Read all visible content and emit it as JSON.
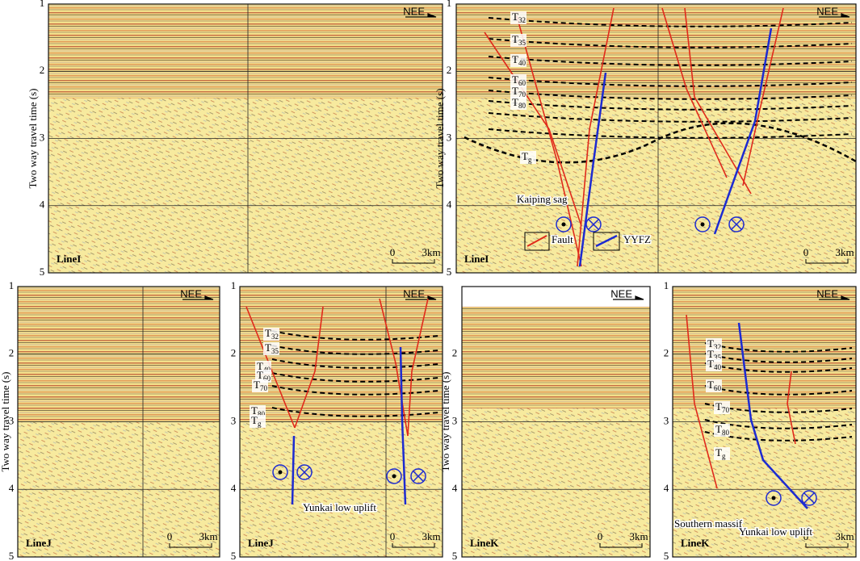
{
  "panels": [
    {
      "line": "LineI",
      "y_label": "Two way travel time (s)",
      "yticks": [
        1,
        2,
        3,
        4,
        5
      ],
      "direction": "NEE",
      "scale": [
        "0",
        "3km"
      ],
      "horizons": [],
      "annotations": []
    },
    {
      "line": "LineI",
      "y_label": "Two way travel time (s)",
      "yticks": [
        1,
        2,
        3,
        4,
        5
      ],
      "direction": "NEE",
      "scale": [
        "0",
        "3km"
      ],
      "horizons": [
        {
          "t": "T",
          "sub": "32"
        },
        {
          "t": "T",
          "sub": "35"
        },
        {
          "t": "T",
          "sub": "40"
        },
        {
          "t": "T",
          "sub": "60"
        },
        {
          "t": "T",
          "sub": "70"
        },
        {
          "t": "T",
          "sub": "80"
        },
        {
          "t": "T",
          "sub": "g"
        }
      ],
      "annotations": [
        "Kaiping sag",
        "Fault",
        "YYFZ"
      ]
    },
    {
      "line": "LineJ",
      "y_label": "Two way travel time (s)",
      "yticks": [
        1,
        2,
        3,
        4,
        5
      ],
      "direction": "NEE",
      "scale": [
        "0",
        "3km"
      ],
      "horizons": [],
      "annotations": []
    },
    {
      "line": "LineJ",
      "y_label": null,
      "yticks": [
        1,
        2,
        3,
        4,
        5
      ],
      "direction": "NEE",
      "scale": [
        "0",
        "3km"
      ],
      "horizons": [
        {
          "t": "T",
          "sub": "32"
        },
        {
          "t": "T",
          "sub": "35"
        },
        {
          "t": "T",
          "sub": "40"
        },
        {
          "t": "T",
          "sub": "60"
        },
        {
          "t": "T",
          "sub": "70"
        },
        {
          "t": "T",
          "sub": "80"
        },
        {
          "t": "T",
          "sub": "g"
        }
      ],
      "annotations": [
        "Yunkai low uplift"
      ]
    },
    {
      "line": "LineK",
      "y_label": "Two way travel time (s)",
      "yticks": [
        2,
        3,
        4,
        5
      ],
      "direction": "NEE",
      "scale": [
        "0",
        "3km"
      ],
      "horizons": [],
      "annotations": []
    },
    {
      "line": "LineK",
      "y_label": null,
      "yticks": [
        1,
        2,
        3,
        4,
        5
      ],
      "direction": "NEE",
      "scale": [
        "0",
        "3km"
      ],
      "horizons": [
        {
          "t": "T",
          "sub": "32"
        },
        {
          "t": "T",
          "sub": "35"
        },
        {
          "t": "T",
          "sub": "40"
        },
        {
          "t": "T",
          "sub": "60"
        },
        {
          "t": "T",
          "sub": "70"
        },
        {
          "t": "T",
          "sub": "80"
        },
        {
          "t": "T",
          "sub": "g"
        }
      ],
      "annotations": [
        "Southern massif",
        "Yunkai low uplift"
      ]
    }
  ]
}
